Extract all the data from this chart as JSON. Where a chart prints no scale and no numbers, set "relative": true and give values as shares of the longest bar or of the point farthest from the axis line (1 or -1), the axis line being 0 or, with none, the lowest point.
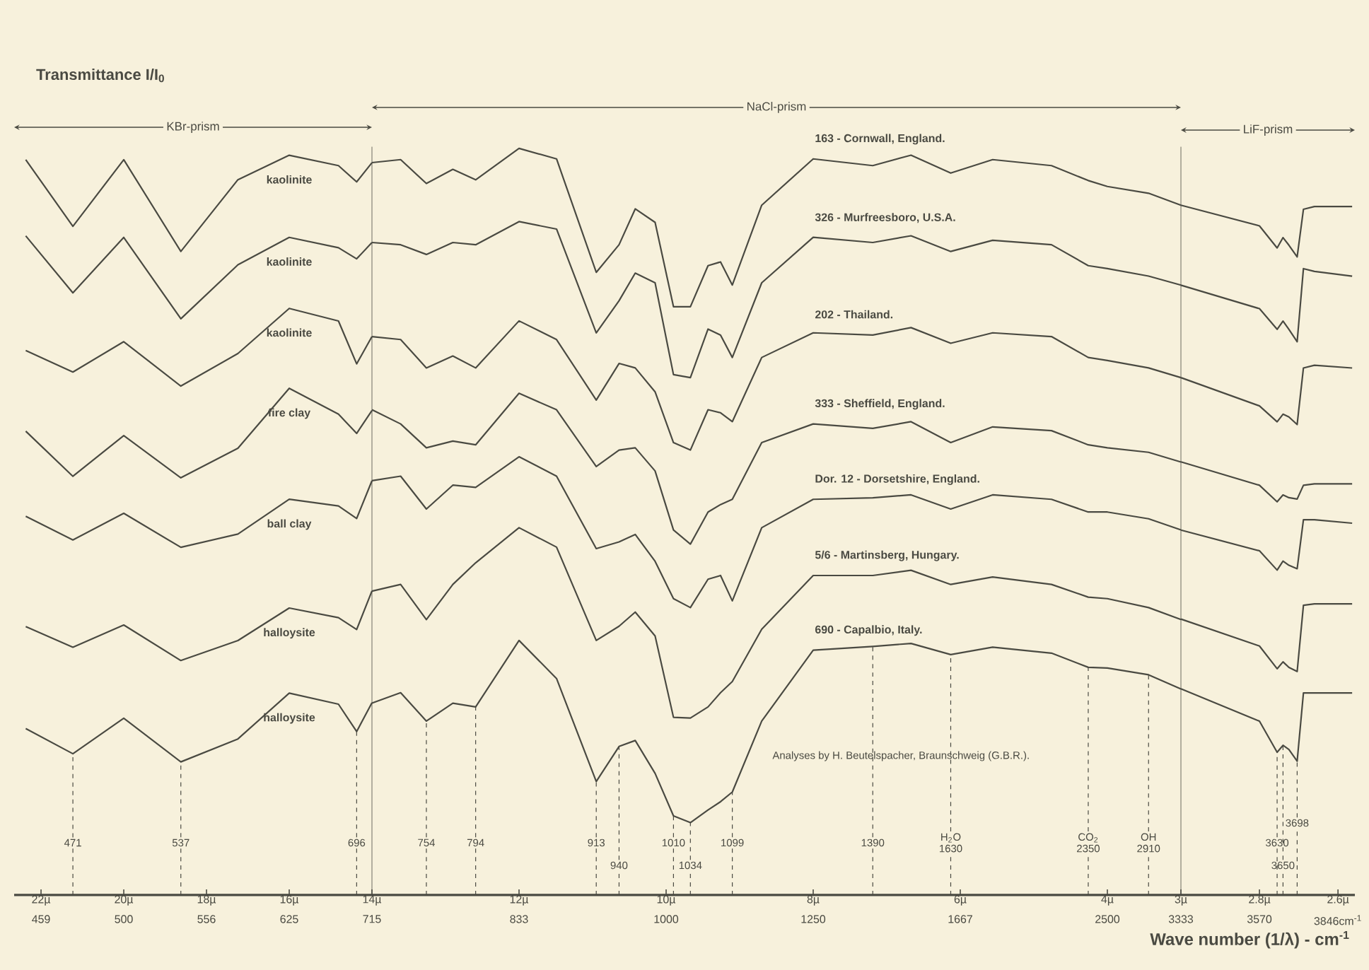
{
  "chart_data": [
    {
      "type": "line",
      "relative": true,
      "marker": "none",
      "title": "KBr-prism",
      "ylabel": "Transmittance I/I$_{0}$",
      "xlim": [
        22.65,
        14
      ],
      "xticks": [
        {
          "value": 22,
          "label": "22µ"
        },
        {
          "value": 20,
          "label": "20µ"
        },
        {
          "value": 18,
          "label": "18µ"
        },
        {
          "value": 16,
          "label": "16µ"
        }
      ],
      "x": [
        22.37,
        21.23,
        20.0,
        18.62,
        17.24,
        16.0,
        14.81,
        14.37,
        14.0
      ],
      "series": [
        {
          "name": "kaolinite",
          "color": "#4a4a42",
          "values": [
            0.994,
            0.904,
            0.994,
            0.87,
            0.967,
            1,
            0.986,
            0.964,
            0.99
          ]
        },
        {
          "name": "kaolinite",
          "color": "#4a4a42",
          "values": [
            0.891,
            0.814,
            0.889,
            0.779,
            0.852,
            0.889,
            0.875,
            0.86,
            0.882
          ]
        },
        {
          "name": "kaolinite",
          "color": "#4a4a42",
          "values": [
            0.736,
            0.707,
            0.748,
            0.688,
            0.732,
            0.793,
            0.776,
            0.718,
            0.755
          ]
        },
        {
          "name": "fire clay",
          "color": "#4a4a42",
          "values": [
            0.627,
            0.566,
            0.621,
            0.564,
            0.604,
            0.685,
            0.65,
            0.624,
            0.655
          ]
        },
        {
          "name": "ball clay",
          "color": "#4a4a42",
          "values": [
            0.512,
            0.48,
            0.516,
            0.47,
            0.488,
            0.535,
            0.526,
            0.509,
            0.56
          ]
        },
        {
          "name": "halloysite",
          "color": "#4a4a42",
          "values": [
            0.363,
            0.335,
            0.365,
            0.317,
            0.344,
            0.388,
            0.375,
            0.359,
            0.411
          ]
        },
        {
          "name": "halloysite",
          "color": "#4a4a42",
          "values": [
            0.225,
            0.191,
            0.239,
            0.18,
            0.211,
            0.273,
            0.258,
            0.221,
            0.26
          ]
        }
      ],
      "annotations": [
        "459",
        "500",
        "556",
        "625",
        {
          "text": "471",
          "x": 21.23,
          "y": 0.191
        },
        {
          "text": "537",
          "x": 18.62,
          "y": 0.18
        },
        {
          "text": "696",
          "x": 14.37,
          "y": 0.221
        }
      ]
    },
    {
      "type": "line",
      "relative": true,
      "marker": "none",
      "title": "NaCl-prism",
      "xlim": [
        14,
        3
      ],
      "xticks": [
        {
          "value": 14,
          "label": "14µ"
        },
        {
          "value": 12,
          "label": "12µ"
        },
        {
          "value": 10,
          "label": "10µ"
        },
        {
          "value": 8,
          "label": "8µ"
        },
        {
          "value": 6,
          "label": "6µ"
        },
        {
          "value": 4,
          "label": "4µ"
        },
        {
          "value": 3,
          "label": "3µ"
        }
      ],
      "x": [
        14.0,
        13.61,
        13.26,
        12.9,
        12.59,
        12.0,
        11.49,
        10.95,
        10.64,
        10.42,
        10.15,
        9.9,
        9.67,
        9.43,
        9.26,
        9.1,
        8.7,
        8.0,
        7.19,
        6.67,
        6.13,
        5.56,
        4.76,
        4.26,
        4.0,
        3.44,
        3.0
      ],
      "series": [
        {
          "name": "163 - Cornwall, England.",
          "color": "#4a4a42",
          "values": [
            0.981,
            0.985,
            0.953,
            0.972,
            0.958,
            1,
            0.986,
            0.834,
            0.871,
            0.919,
            0.901,
            0.788,
            0.788,
            0.843,
            0.848,
            0.817,
            0.924,
            0.986,
            0.977,
            0.991,
            0.967,
            0.985,
            0.977,
            0.957,
            0.949,
            0.94,
            0.924
          ]
        },
        {
          "name": "326 - Murfreesboro, U.S.A.",
          "color": "#4a4a42",
          "values": [
            0.874,
            0.871,
            0.858,
            0.874,
            0.871,
            0.902,
            0.892,
            0.753,
            0.796,
            0.833,
            0.82,
            0.697,
            0.693,
            0.758,
            0.75,
            0.72,
            0.82,
            0.881,
            0.874,
            0.883,
            0.862,
            0.877,
            0.871,
            0.843,
            0.839,
            0.829,
            0.817
          ]
        },
        {
          "name": "202 - Thailand.",
          "color": "#4a4a42",
          "values": [
            0.748,
            0.744,
            0.706,
            0.722,
            0.706,
            0.769,
            0.744,
            0.663,
            0.712,
            0.706,
            0.674,
            0.606,
            0.596,
            0.65,
            0.646,
            0.634,
            0.72,
            0.753,
            0.75,
            0.76,
            0.739,
            0.753,
            0.748,
            0.72,
            0.716,
            0.706,
            0.693
          ]
        },
        {
          "name": "333 - Sheffield, England.",
          "color": "#4a4a42",
          "values": [
            0.65,
            0.631,
            0.599,
            0.608,
            0.603,
            0.672,
            0.65,
            0.574,
            0.596,
            0.599,
            0.568,
            0.489,
            0.47,
            0.513,
            0.523,
            0.53,
            0.606,
            0.631,
            0.625,
            0.634,
            0.606,
            0.627,
            0.622,
            0.603,
            0.599,
            0.593,
            0.58
          ]
        },
        {
          "name": "Dor. 12 - Dorsetshire, England.",
          "color": "#4a4a42",
          "values": [
            0.555,
            0.561,
            0.517,
            0.549,
            0.546,
            0.587,
            0.561,
            0.464,
            0.473,
            0.483,
            0.447,
            0.397,
            0.385,
            0.423,
            0.428,
            0.394,
            0.492,
            0.53,
            0.532,
            0.536,
            0.517,
            0.536,
            0.53,
            0.513,
            0.513,
            0.504,
            0.489
          ]
        },
        {
          "name": "5/6 - Martinsberg, Hungary.",
          "color": "#4a4a42",
          "values": [
            0.407,
            0.416,
            0.369,
            0.416,
            0.445,
            0.492,
            0.466,
            0.341,
            0.36,
            0.379,
            0.347,
            0.238,
            0.237,
            0.252,
            0.271,
            0.286,
            0.356,
            0.428,
            0.428,
            0.435,
            0.416,
            0.426,
            0.416,
            0.399,
            0.397,
            0.385,
            0.369
          ]
        },
        {
          "name": "690 - Capalbio, Italy.",
          "color": "#4a4a42",
          "values": [
            0.257,
            0.271,
            0.233,
            0.257,
            0.252,
            0.341,
            0.29,
            0.152,
            0.199,
            0.207,
            0.163,
            0.106,
            0.097,
            0.114,
            0.125,
            0.138,
            0.233,
            0.328,
            0.333,
            0.337,
            0.322,
            0.332,
            0.324,
            0.305,
            0.304,
            0.295,
            0.276
          ]
        }
      ],
      "annotations": [
        "715",
        "833",
        "1000",
        "1250",
        "1667",
        "2500",
        "3333",
        {
          "text": "754",
          "x": 13.26,
          "y": 0.233
        },
        {
          "text": "794",
          "x": 12.59,
          "y": 0.252
        },
        {
          "text": "913",
          "x": 10.95,
          "y": 0.152
        },
        {
          "text": "940",
          "x": 10.64,
          "y": 0.199
        },
        {
          "text": "1010",
          "x": 9.9,
          "y": 0.106
        },
        {
          "text": "1034",
          "x": 9.67,
          "y": 0.097
        },
        {
          "text": "1099",
          "x": 9.1,
          "y": 0.138
        },
        {
          "text": "1390",
          "x": 7.19,
          "y": 0.333
        },
        {
          "text": "H$_{2}$O 1630",
          "x": 6.13,
          "y": 0.322
        },
        {
          "text": "CO$_{2}$ 2350",
          "x": 4.26,
          "y": 0.305
        },
        {
          "text": "OH 2910",
          "x": 3.44,
          "y": 0.295
        },
        "Analyses by H. Beutelspacher, Braunschweig (G.B.R.)."
      ]
    },
    {
      "type": "line",
      "relative": true,
      "marker": "none",
      "title": "LiF-prism",
      "xlabel": "Wave number (1/λ) - cm$^{-1}$",
      "xlim": [
        3,
        2.557
      ],
      "xticks": [
        {
          "value": 2.8,
          "label": "2.8µ"
        },
        {
          "value": 2.6,
          "label": "2.6µ"
        }
      ],
      "x": [
        3.0,
        2.8,
        2.755,
        2.74,
        2.725,
        2.704,
        2.688,
        2.66,
        2.564
      ],
      "series": [
        {
          "color": "#4a4a42",
          "values": [
            1,
            0.97,
            0.938,
            0.953,
            0.942,
            0.925,
            0.994,
            0.998,
            0.998
          ]
        },
        {
          "color": "#4a4a42",
          "values": [
            0.884,
            0.85,
            0.82,
            0.832,
            0.82,
            0.802,
            0.908,
            0.904,
            0.897
          ]
        },
        {
          "color": "#4a4a42",
          "values": [
            0.75,
            0.709,
            0.686,
            0.697,
            0.693,
            0.682,
            0.764,
            0.768,
            0.764
          ]
        },
        {
          "color": "#4a4a42",
          "values": [
            0.628,
            0.594,
            0.57,
            0.58,
            0.576,
            0.574,
            0.594,
            0.596,
            0.596
          ]
        },
        {
          "color": "#4a4a42",
          "values": [
            0.529,
            0.499,
            0.471,
            0.484,
            0.478,
            0.473,
            0.544,
            0.544,
            0.539
          ]
        },
        {
          "color": "#4a4a42",
          "values": [
            0.4,
            0.361,
            0.328,
            0.338,
            0.33,
            0.324,
            0.42,
            0.422,
            0.422
          ]
        },
        {
          "color": "#4a4a42",
          "values": [
            0.299,
            0.252,
            0.207,
            0.217,
            0.211,
            0.194,
            0.293,
            0.293,
            0.293
          ]
        }
      ],
      "annotations": [
        "3570",
        "3846cm$^{-1}$",
        {
          "text": "3630",
          "x": 2.755,
          "y": 0.207
        },
        {
          "text": "3650",
          "x": 2.74,
          "y": 0.217
        },
        {
          "text": "3698",
          "x": 2.704,
          "y": 0.194
        }
      ]
    }
  ]
}
